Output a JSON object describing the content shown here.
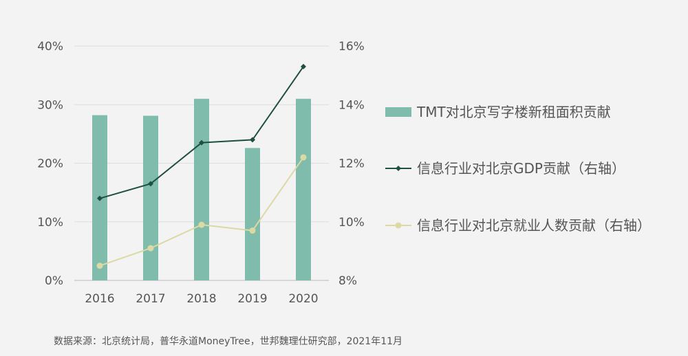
{
  "chart_data": {
    "type": "bar+line",
    "categories": [
      "2016",
      "2017",
      "2018",
      "2019",
      "2020"
    ],
    "series": [
      {
        "name": "TMT对北京写字楼新租面积贡献",
        "kind": "bar",
        "axis": "left",
        "color": "#80bcac",
        "values": [
          28.2,
          28.1,
          31.0,
          22.6,
          31.0
        ]
      },
      {
        "name": "信息行业对北京GDP贡献（右轴）",
        "kind": "line",
        "axis": "right",
        "color": "#1f4f3e",
        "marker": "diamond",
        "values": [
          10.8,
          11.3,
          12.7,
          12.8,
          15.3
        ]
      },
      {
        "name": "信息行业对北京就业人数贡献（右轴）",
        "kind": "line",
        "axis": "right",
        "color": "#dbd9a4",
        "marker": "circle",
        "values": [
          8.5,
          9.1,
          9.9,
          9.7,
          12.2
        ]
      }
    ],
    "left_axis": {
      "ylim": [
        0,
        40
      ],
      "ticks": [
        0,
        10,
        20,
        30,
        40
      ],
      "unit": "%"
    },
    "right_axis": {
      "ylim": [
        8,
        16
      ],
      "ticks": [
        8,
        10,
        12,
        14,
        16
      ],
      "unit": "%"
    },
    "grid": true,
    "legend_position": "right"
  },
  "source_note": "数据来源：北京统计局，普华永道MoneyTree，世邦魏理仕研究部，2021年11月"
}
